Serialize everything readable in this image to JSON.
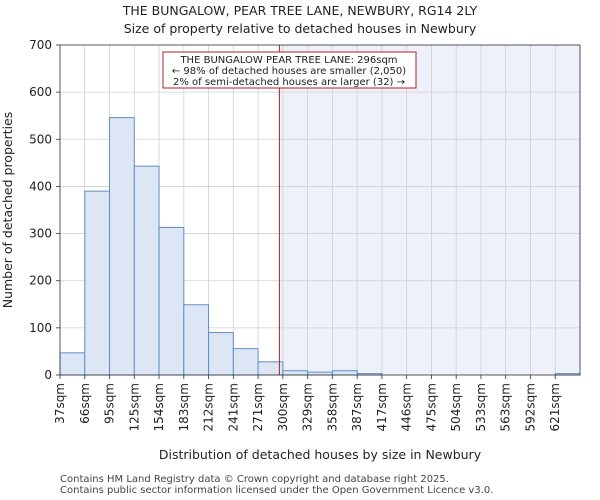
{
  "chart_data": {
    "type": "bar",
    "title": "THE BUNGALOW, PEAR TREE LANE, NEWBURY, RG14 2LY",
    "subtitle": "Size of property relative to detached houses in Newbury",
    "xlabel": "Distribution of detached houses by size in Newbury",
    "ylabel": "Number of detached properties",
    "ylim": [
      0,
      700
    ],
    "yticks": [
      "0",
      "100",
      "200",
      "300",
      "400",
      "500",
      "600",
      "700"
    ],
    "categories": [
      "37sqm",
      "66sqm",
      "95sqm",
      "125sqm",
      "154sqm",
      "183sqm",
      "212sqm",
      "241sqm",
      "271sqm",
      "300sqm",
      "329sqm",
      "358sqm",
      "387sqm",
      "417sqm",
      "446sqm",
      "475sqm",
      "504sqm",
      "533sqm",
      "563sqm",
      "592sqm",
      "621sqm"
    ],
    "values": [
      47,
      390,
      546,
      443,
      313,
      149,
      90,
      56,
      28,
      9,
      6,
      9,
      3,
      0,
      0,
      0,
      0,
      0,
      0,
      0,
      3
    ],
    "marker_value": 296,
    "marker_bin_position": 8.86,
    "annotation": {
      "line1": "THE BUNGALOW PEAR TREE LANE: 296sqm",
      "line2": "← 98% of detached houses are smaller (2,050)",
      "line3": "2% of semi-detached houses are larger (32) →"
    },
    "grid": true,
    "colors": {
      "bar_fill": "#dce6f4",
      "bar_stroke": "#5f8ec8",
      "grid": "#d0d0d0",
      "marker_line": "#b22222",
      "annot_border": "#b22222",
      "shade": "#eef1fa"
    }
  },
  "footer": {
    "line1": "Contains HM Land Registry data © Crown copyright and database right 2025.",
    "line2": "Contains public sector information licensed under the Open Government Licence v3.0."
  }
}
